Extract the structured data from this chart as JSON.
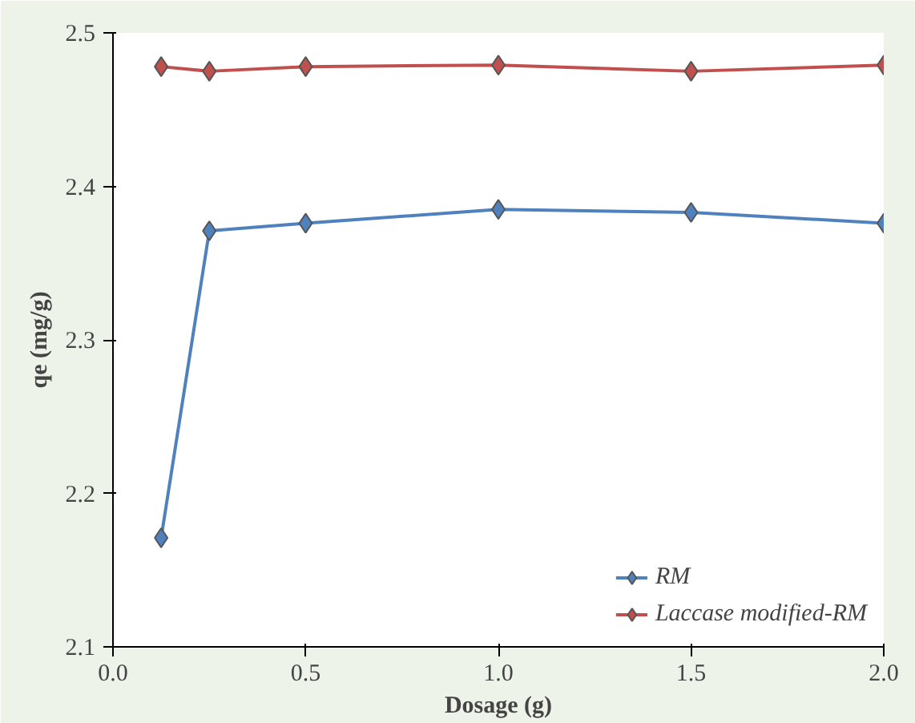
{
  "chart_data": {
    "type": "line",
    "xlabel": "Dosage (g)",
    "ylabel": "qe (mg/g)",
    "xlim": [
      0,
      2
    ],
    "xticks": [
      {
        "value": 0,
        "label": "0.0"
      },
      0.5,
      {
        "value": 1,
        "label": "1.0"
      },
      1.5,
      {
        "value": 2,
        "label": "2.0"
      }
    ],
    "ylim": [
      2.1,
      2.5
    ],
    "yticks": [
      2.1,
      2.2,
      2.3,
      2.4,
      2.5
    ],
    "x": [
      0.125,
      0.25,
      0.5,
      1.0,
      1.5,
      2.0
    ],
    "series": [
      {
        "name": "RM",
        "color": "#4f81bd",
        "values": [
          2.171,
          2.371,
          2.376,
          2.385,
          2.383,
          2.376
        ]
      },
      {
        "name": "Laccase modified-RM",
        "color": "#c0504d",
        "values": [
          2.478,
          2.475,
          2.478,
          2.479,
          2.475,
          2.479
        ]
      }
    ],
    "marker": "diamond",
    "line_style": "solid",
    "grid": false,
    "legend": "bottom right"
  }
}
